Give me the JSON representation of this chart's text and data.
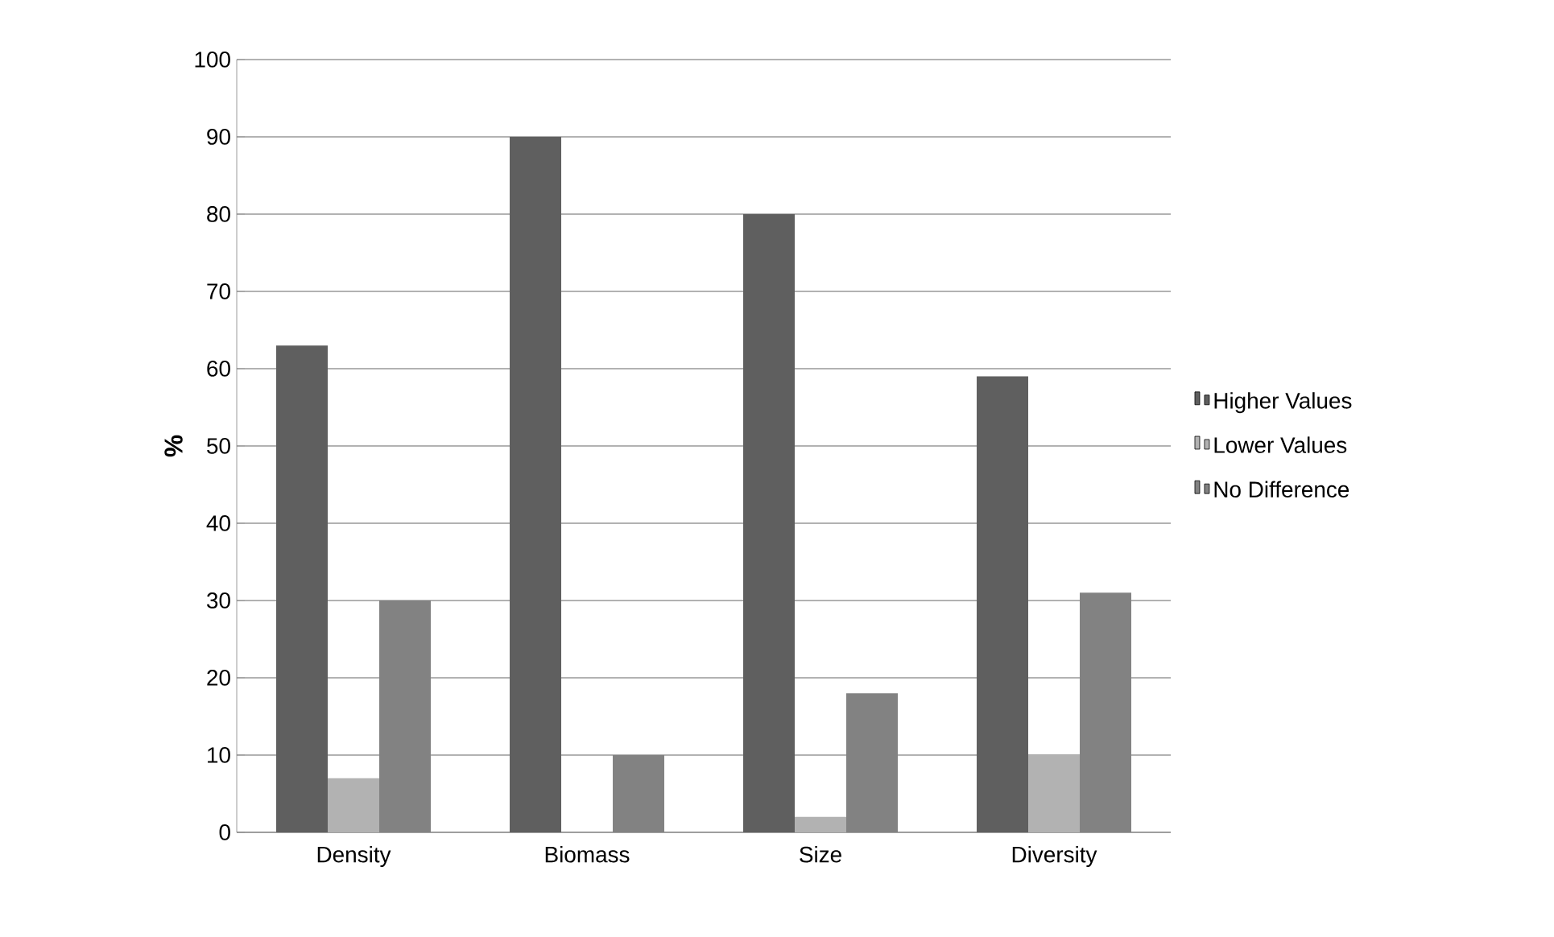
{
  "chart_data": {
    "type": "bar",
    "ylabel": "%",
    "categories": [
      "Density",
      "Biomass",
      "Size",
      "Diversity"
    ],
    "series": [
      {
        "name": "Higher Values",
        "color": "#5f5f5f",
        "values": [
          63,
          90,
          80,
          59
        ]
      },
      {
        "name": "Lower Values",
        "color": "#b2b2b2",
        "values": [
          7,
          0,
          2,
          10
        ]
      },
      {
        "name": "No Difference",
        "color": "#828282",
        "values": [
          30,
          10,
          18,
          31
        ]
      }
    ],
    "ylim": [
      0,
      100
    ],
    "yticks": [
      0,
      10,
      20,
      30,
      40,
      50,
      60,
      70,
      80,
      90,
      100
    ],
    "grid": "y",
    "legend": "right"
  }
}
